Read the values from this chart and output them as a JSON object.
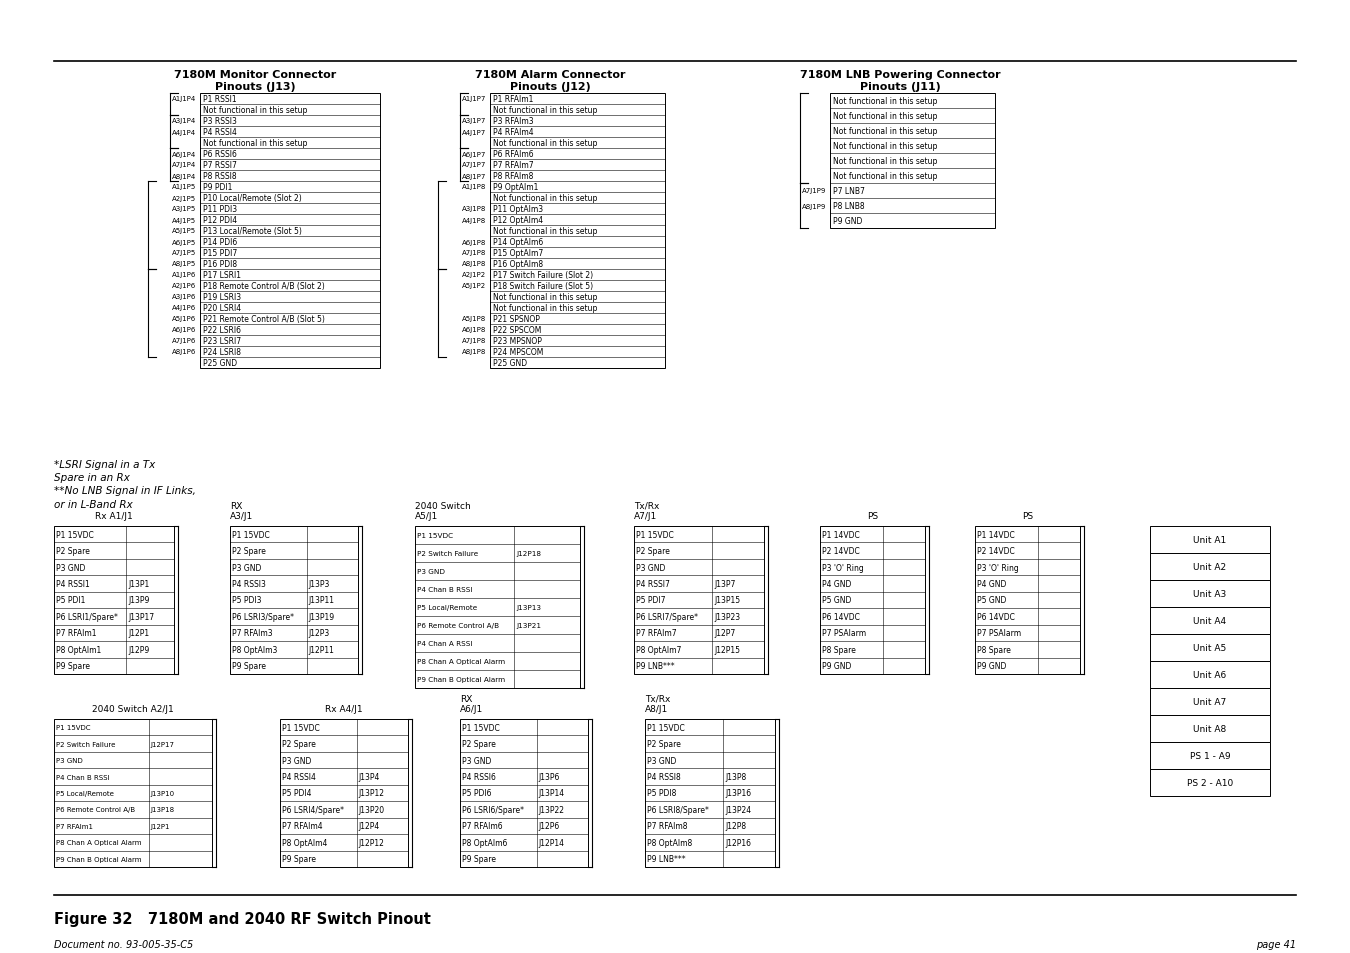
{
  "title": "Figure 32   7180M and 2040 RF Switch Pinout",
  "doc_number": "Document no. 93-005-35-C5",
  "page": "page 41",
  "bg_color": "#ffffff"
}
